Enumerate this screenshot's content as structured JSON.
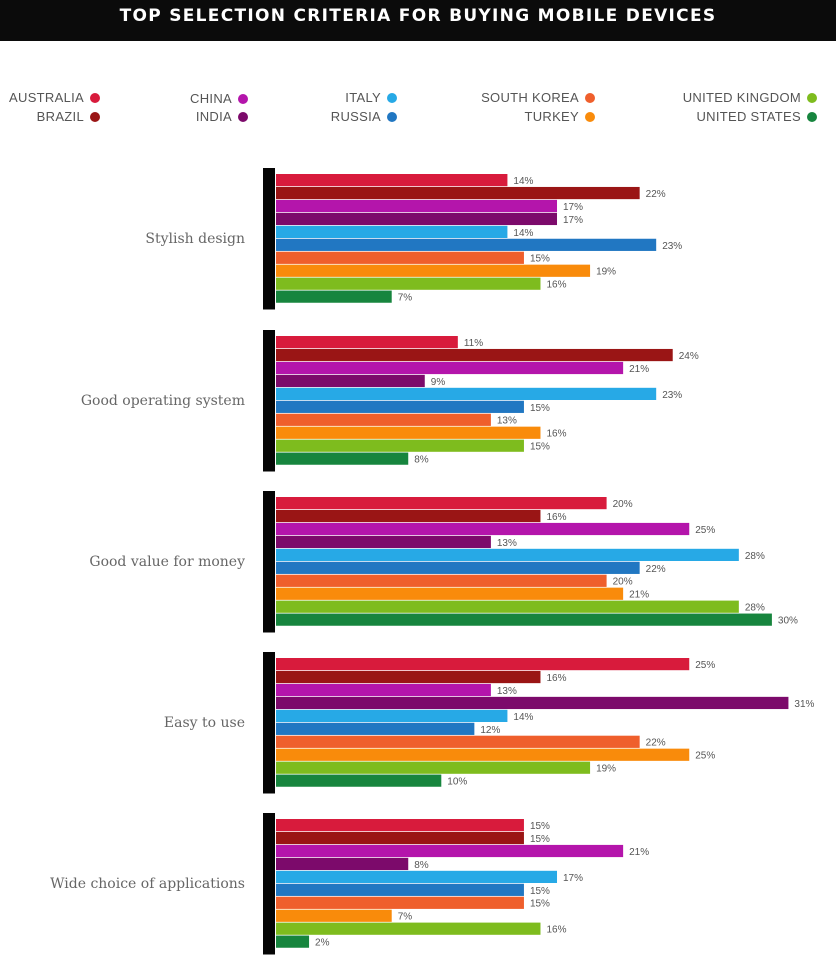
{
  "title": "TOP SELECTION CRITERIA FOR BUYING MOBILE DEVICES",
  "legend": [
    {
      "label": "AUSTRALIA",
      "color": "#d81b3c"
    },
    {
      "label": "BRAZIL",
      "color": "#9a1515"
    },
    {
      "label": "CHINA",
      "color": "#b415ab"
    },
    {
      "label": "INDIA",
      "color": "#7c0a6b"
    },
    {
      "label": "ITALY",
      "color": "#27a9e6"
    },
    {
      "label": "RUSSIA",
      "color": "#2177c2"
    },
    {
      "label": "SOUTH KOREA",
      "color": "#ef5f2c"
    },
    {
      "label": "TURKEY",
      "color": "#f98b0b"
    },
    {
      "label": "UNITED KINGDOM",
      "color": "#7ebc1e"
    },
    {
      "label": "UNITED STATES",
      "color": "#17853e"
    }
  ],
  "chart_data": {
    "type": "bar",
    "orientation": "horizontal",
    "categories": [
      "Stylish design",
      "Good operating system",
      "Good value for money",
      "Easy to use",
      "Wide choice of applications"
    ],
    "value_suffix": "%",
    "xlim": [
      0,
      31
    ],
    "series": [
      {
        "name": "AUSTRALIA",
        "color": "#d81b3c",
        "values": [
          14,
          11,
          20,
          25,
          15
        ]
      },
      {
        "name": "BRAZIL",
        "color": "#9a1515",
        "values": [
          22,
          24,
          16,
          16,
          15
        ]
      },
      {
        "name": "CHINA",
        "color": "#b415ab",
        "values": [
          17,
          21,
          25,
          13,
          21
        ]
      },
      {
        "name": "INDIA",
        "color": "#7c0a6b",
        "values": [
          17,
          9,
          13,
          31,
          8
        ]
      },
      {
        "name": "ITALY",
        "color": "#27a9e6",
        "values": [
          14,
          23,
          28,
          14,
          17
        ]
      },
      {
        "name": "RUSSIA",
        "color": "#2177c2",
        "values": [
          23,
          15,
          22,
          12,
          15
        ]
      },
      {
        "name": "SOUTH KOREA",
        "color": "#ef5f2c",
        "values": [
          15,
          13,
          20,
          22,
          15
        ]
      },
      {
        "name": "TURKEY",
        "color": "#f98b0b",
        "values": [
          19,
          16,
          21,
          25,
          7
        ]
      },
      {
        "name": "UNITED KINGDOM",
        "color": "#7ebc1e",
        "values": [
          16,
          15,
          28,
          19,
          16
        ]
      },
      {
        "name": "UNITED STATES",
        "color": "#17853e",
        "values": [
          7,
          8,
          30,
          10,
          2
        ]
      }
    ]
  }
}
